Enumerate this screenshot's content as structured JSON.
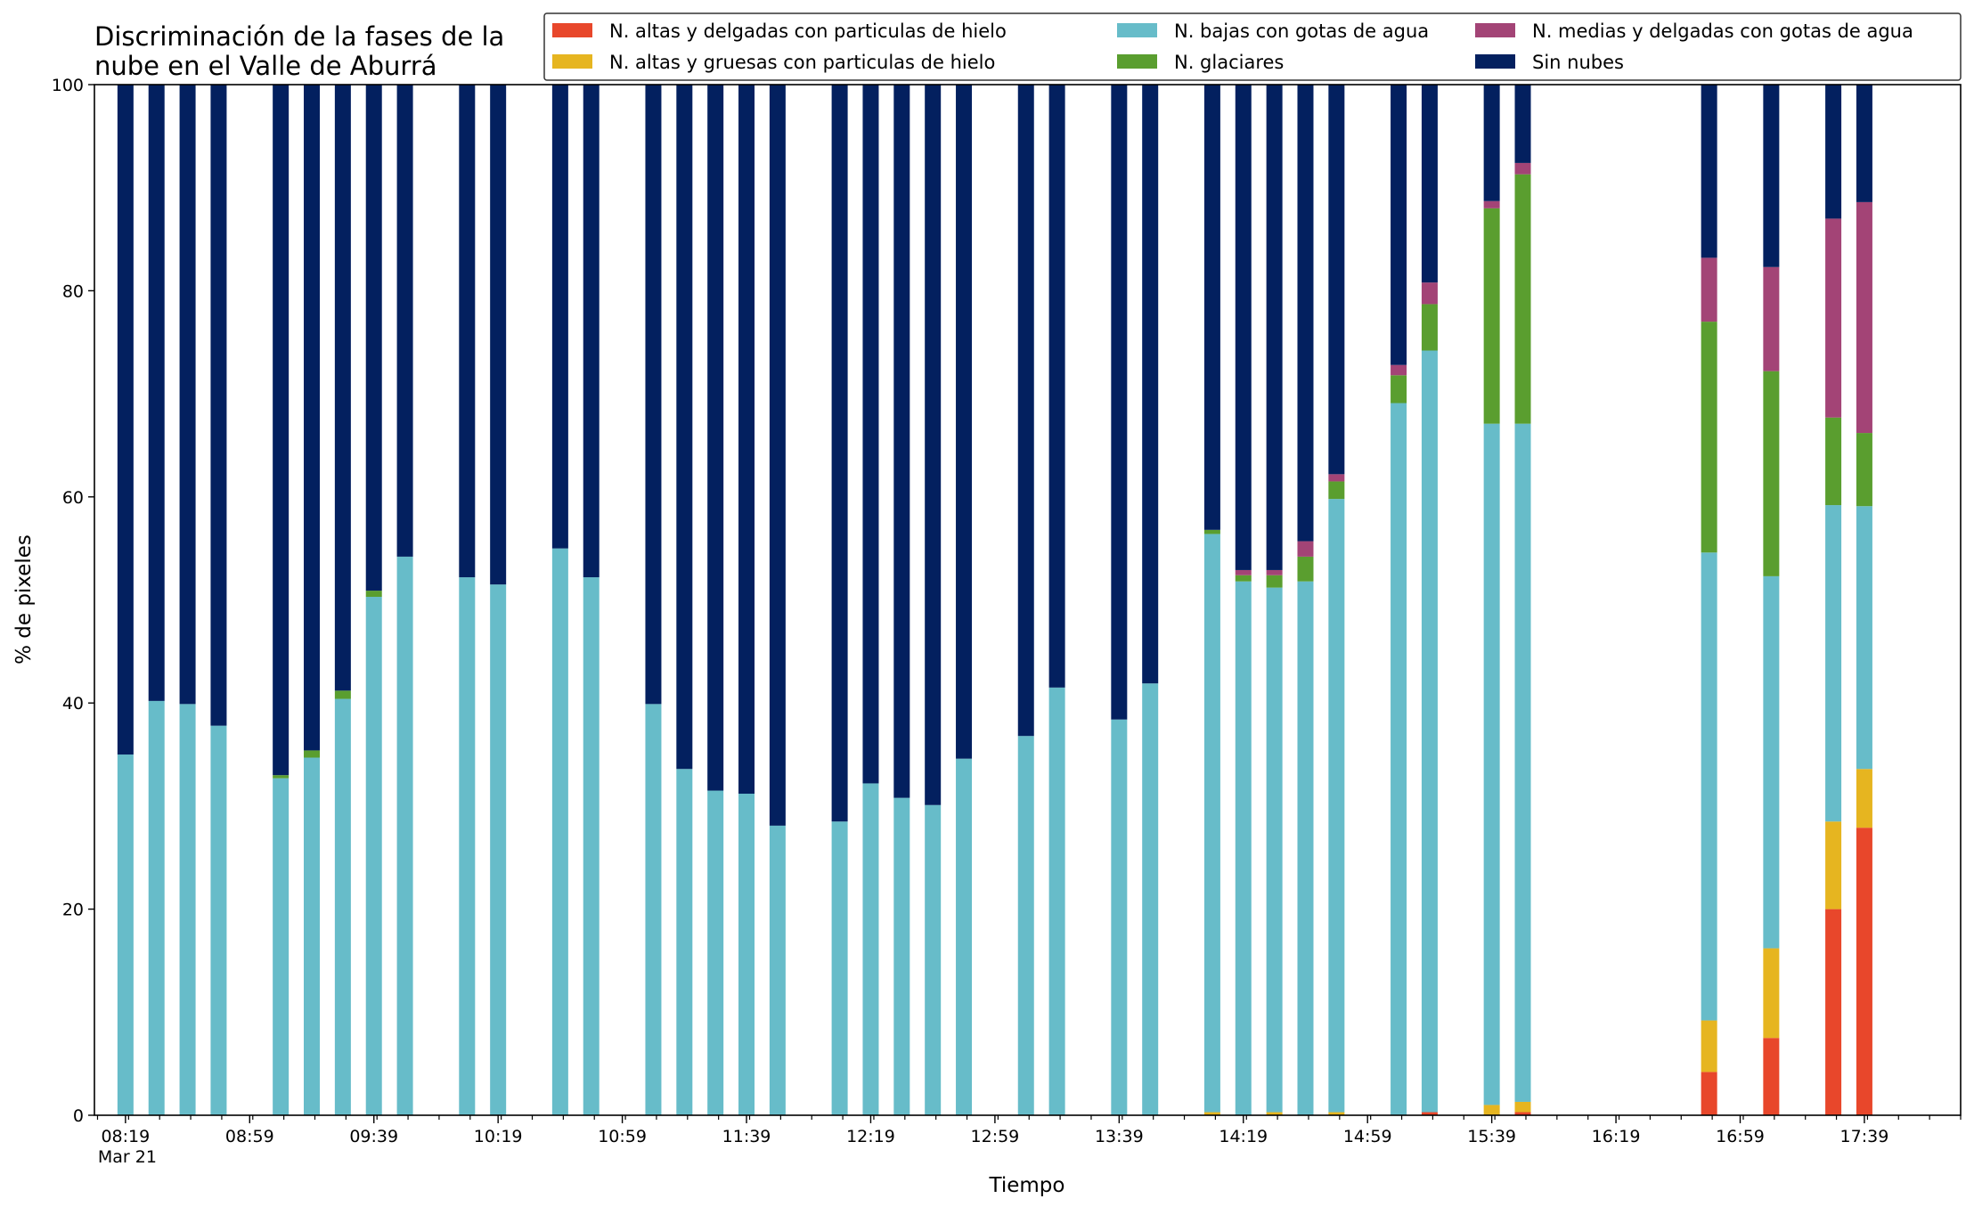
{
  "chart_data": {
    "type": "bar",
    "stacked": true,
    "title_lines": [
      "Discriminación de la fases de la",
      "nube en el Valle de Aburrá"
    ],
    "xlabel": "Tiempo",
    "ylabel": "% de pixeles",
    "ylim": [
      0,
      100
    ],
    "yticks": [
      0,
      20,
      40,
      60,
      80,
      100
    ],
    "xlim": [
      "08:09",
      "18:10"
    ],
    "xtick_labels": [
      {
        "t": "08:19",
        "label": "08:19",
        "sub": "Mar 21"
      },
      {
        "t": "08:59",
        "label": "08:59"
      },
      {
        "t": "09:39",
        "label": "09:39"
      },
      {
        "t": "10:19",
        "label": "10:19"
      },
      {
        "t": "10:59",
        "label": "10:59"
      },
      {
        "t": "11:39",
        "label": "11:39"
      },
      {
        "t": "12:19",
        "label": "12:19"
      },
      {
        "t": "12:59",
        "label": "12:59"
      },
      {
        "t": "13:39",
        "label": "13:39"
      },
      {
        "t": "14:19",
        "label": "14:19"
      },
      {
        "t": "14:59",
        "label": "14:59"
      },
      {
        "t": "15:39",
        "label": "15:39"
      },
      {
        "t": "16:19",
        "label": "16:19"
      },
      {
        "t": "16:59",
        "label": "16:59"
      },
      {
        "t": "17:39",
        "label": "17:39"
      }
    ],
    "minor_tick_step_minutes": 10,
    "legend_position": "top-right",
    "series": [
      {
        "key": "altas_delgadas",
        "name": "N. altas y delgadas con particulas de hielo",
        "color": "#e8472b"
      },
      {
        "key": "altas_gruesas",
        "name": "N. altas y gruesas con particulas de hielo",
        "color": "#e6b520"
      },
      {
        "key": "bajas",
        "name": "N. bajas con gotas de agua",
        "color": "#67bcc9"
      },
      {
        "key": "glaciares",
        "name": "N. glaciares",
        "color": "#5a9e2f"
      },
      {
        "key": "medias",
        "name": "N. medias y delgadas con gotas de agua",
        "color": "#a34476"
      },
      {
        "key": "sin_nubes",
        "name": "Sin nubes",
        "color": "#03205f"
      }
    ],
    "legend_order": [
      "altas_delgadas",
      "altas_gruesas",
      "bajas",
      "glaciares",
      "medias",
      "sin_nubes"
    ],
    "bars": [
      {
        "time": "08:19",
        "altas_delgadas": 0,
        "altas_gruesas": 0,
        "bajas": 35.0,
        "glaciares": 0,
        "medias": 0,
        "sin_nubes": 65.0
      },
      {
        "time": "08:29",
        "altas_delgadas": 0,
        "altas_gruesas": 0,
        "bajas": 40.2,
        "glaciares": 0,
        "medias": 0,
        "sin_nubes": 59.8
      },
      {
        "time": "08:39",
        "altas_delgadas": 0,
        "altas_gruesas": 0,
        "bajas": 39.9,
        "glaciares": 0,
        "medias": 0,
        "sin_nubes": 60.1
      },
      {
        "time": "08:49",
        "altas_delgadas": 0,
        "altas_gruesas": 0,
        "bajas": 37.8,
        "glaciares": 0,
        "medias": 0,
        "sin_nubes": 62.2
      },
      {
        "time": "09:09",
        "altas_delgadas": 0,
        "altas_gruesas": 0,
        "bajas": 32.7,
        "glaciares": 0.3,
        "medias": 0,
        "sin_nubes": 67.0
      },
      {
        "time": "09:19",
        "altas_delgadas": 0,
        "altas_gruesas": 0,
        "bajas": 34.7,
        "glaciares": 0.7,
        "medias": 0,
        "sin_nubes": 64.6
      },
      {
        "time": "09:29",
        "altas_delgadas": 0,
        "altas_gruesas": 0,
        "bajas": 40.4,
        "glaciares": 0.8,
        "medias": 0,
        "sin_nubes": 58.8
      },
      {
        "time": "09:39",
        "altas_delgadas": 0,
        "altas_gruesas": 0,
        "bajas": 50.3,
        "glaciares": 0.6,
        "medias": 0,
        "sin_nubes": 49.1
      },
      {
        "time": "09:49",
        "altas_delgadas": 0,
        "altas_gruesas": 0,
        "bajas": 54.2,
        "glaciares": 0,
        "medias": 0,
        "sin_nubes": 45.8
      },
      {
        "time": "10:09",
        "altas_delgadas": 0,
        "altas_gruesas": 0,
        "bajas": 52.2,
        "glaciares": 0,
        "medias": 0,
        "sin_nubes": 47.8
      },
      {
        "time": "10:19",
        "altas_delgadas": 0,
        "altas_gruesas": 0,
        "bajas": 51.5,
        "glaciares": 0,
        "medias": 0,
        "sin_nubes": 48.5
      },
      {
        "time": "10:39",
        "altas_delgadas": 0,
        "altas_gruesas": 0,
        "bajas": 55.0,
        "glaciares": 0,
        "medias": 0,
        "sin_nubes": 45.0
      },
      {
        "time": "10:49",
        "altas_delgadas": 0,
        "altas_gruesas": 0,
        "bajas": 52.2,
        "glaciares": 0,
        "medias": 0,
        "sin_nubes": 47.8
      },
      {
        "time": "11:09",
        "altas_delgadas": 0,
        "altas_gruesas": 0,
        "bajas": 39.9,
        "glaciares": 0,
        "medias": 0,
        "sin_nubes": 60.1
      },
      {
        "time": "11:19",
        "altas_delgadas": 0,
        "altas_gruesas": 0,
        "bajas": 33.6,
        "glaciares": 0,
        "medias": 0,
        "sin_nubes": 66.4
      },
      {
        "time": "11:29",
        "altas_delgadas": 0,
        "altas_gruesas": 0,
        "bajas": 31.5,
        "glaciares": 0,
        "medias": 0,
        "sin_nubes": 68.5
      },
      {
        "time": "11:39",
        "altas_delgadas": 0,
        "altas_gruesas": 0,
        "bajas": 31.2,
        "glaciares": 0,
        "medias": 0,
        "sin_nubes": 68.8
      },
      {
        "time": "11:49",
        "altas_delgadas": 0,
        "altas_gruesas": 0,
        "bajas": 28.1,
        "glaciares": 0,
        "medias": 0,
        "sin_nubes": 71.9
      },
      {
        "time": "12:09",
        "altas_delgadas": 0,
        "altas_gruesas": 0,
        "bajas": 28.5,
        "glaciares": 0,
        "medias": 0,
        "sin_nubes": 71.5
      },
      {
        "time": "12:19",
        "altas_delgadas": 0,
        "altas_gruesas": 0,
        "bajas": 32.2,
        "glaciares": 0,
        "medias": 0,
        "sin_nubes": 67.8
      },
      {
        "time": "12:29",
        "altas_delgadas": 0,
        "altas_gruesas": 0,
        "bajas": 30.8,
        "glaciares": 0,
        "medias": 0,
        "sin_nubes": 69.2
      },
      {
        "time": "12:39",
        "altas_delgadas": 0,
        "altas_gruesas": 0,
        "bajas": 30.1,
        "glaciares": 0,
        "medias": 0,
        "sin_nubes": 69.9
      },
      {
        "time": "12:49",
        "altas_delgadas": 0,
        "altas_gruesas": 0,
        "bajas": 34.6,
        "glaciares": 0,
        "medias": 0,
        "sin_nubes": 65.4
      },
      {
        "time": "13:09",
        "altas_delgadas": 0,
        "altas_gruesas": 0,
        "bajas": 36.8,
        "glaciares": 0,
        "medias": 0,
        "sin_nubes": 63.2
      },
      {
        "time": "13:19",
        "altas_delgadas": 0,
        "altas_gruesas": 0,
        "bajas": 41.5,
        "glaciares": 0,
        "medias": 0,
        "sin_nubes": 58.5
      },
      {
        "time": "13:39",
        "altas_delgadas": 0,
        "altas_gruesas": 0,
        "bajas": 38.4,
        "glaciares": 0,
        "medias": 0,
        "sin_nubes": 61.6
      },
      {
        "time": "13:49",
        "altas_delgadas": 0,
        "altas_gruesas": 0,
        "bajas": 41.9,
        "glaciares": 0,
        "medias": 0,
        "sin_nubes": 58.1
      },
      {
        "time": "14:09",
        "altas_delgadas": 0,
        "altas_gruesas": 0.3,
        "bajas": 56.1,
        "glaciares": 0.4,
        "medias": 0,
        "sin_nubes": 43.2
      },
      {
        "time": "14:19",
        "altas_delgadas": 0,
        "altas_gruesas": 0,
        "bajas": 51.8,
        "glaciares": 0.6,
        "medias": 0.5,
        "sin_nubes": 47.1
      },
      {
        "time": "14:29",
        "altas_delgadas": 0,
        "altas_gruesas": 0.3,
        "bajas": 50.9,
        "glaciares": 1.2,
        "medias": 0.5,
        "sin_nubes": 47.1
      },
      {
        "time": "14:39",
        "altas_delgadas": 0,
        "altas_gruesas": 0,
        "bajas": 51.8,
        "glaciares": 2.4,
        "medias": 1.5,
        "sin_nubes": 44.3
      },
      {
        "time": "14:49",
        "altas_delgadas": 0,
        "altas_gruesas": 0.3,
        "bajas": 59.5,
        "glaciares": 1.7,
        "medias": 0.7,
        "sin_nubes": 37.8
      },
      {
        "time": "15:09",
        "altas_delgadas": 0,
        "altas_gruesas": 0,
        "bajas": 69.1,
        "glaciares": 2.7,
        "medias": 1.0,
        "sin_nubes": 27.2
      },
      {
        "time": "15:19",
        "altas_delgadas": 0.3,
        "altas_gruesas": 0,
        "bajas": 73.9,
        "glaciares": 4.5,
        "medias": 2.1,
        "sin_nubes": 19.2
      },
      {
        "time": "15:39",
        "altas_delgadas": 0,
        "altas_gruesas": 1.0,
        "bajas": 66.1,
        "glaciares": 20.9,
        "medias": 0.7,
        "sin_nubes": 11.3
      },
      {
        "time": "15:49",
        "altas_delgadas": 0.3,
        "altas_gruesas": 1.0,
        "bajas": 65.8,
        "glaciares": 24.2,
        "medias": 1.1,
        "sin_nubes": 7.6
      },
      {
        "time": "16:49",
        "altas_delgadas": 4.2,
        "altas_gruesas": 5.0,
        "bajas": 45.4,
        "glaciares": 22.4,
        "medias": 6.2,
        "sin_nubes": 16.8
      },
      {
        "time": "17:09",
        "altas_delgadas": 7.5,
        "altas_gruesas": 8.7,
        "bajas": 36.1,
        "glaciares": 19.9,
        "medias": 10.1,
        "sin_nubes": 17.7
      },
      {
        "time": "17:29",
        "altas_delgadas": 20.0,
        "altas_gruesas": 8.5,
        "bajas": 30.7,
        "glaciares": 8.5,
        "medias": 19.3,
        "sin_nubes": 13.0
      },
      {
        "time": "17:39",
        "altas_delgadas": 27.9,
        "altas_gruesas": 5.7,
        "bajas": 25.5,
        "glaciares": 7.1,
        "medias": 22.4,
        "sin_nubes": 11.4
      }
    ]
  }
}
